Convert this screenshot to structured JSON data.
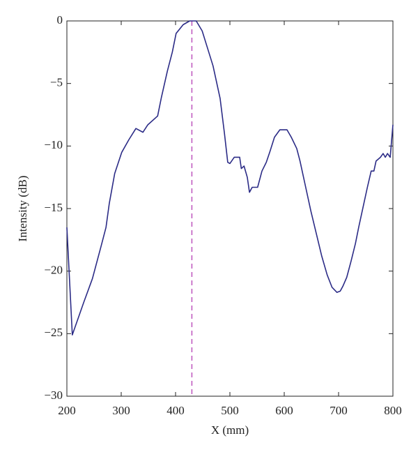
{
  "chart_data": {
    "type": "line",
    "xlabel": "X (mm)",
    "ylabel": "Intensity (dB)",
    "x": [
      200,
      210,
      231,
      247,
      263,
      272,
      278,
      288,
      301,
      314,
      327,
      340,
      349,
      367,
      374,
      385,
      394,
      401,
      414,
      426,
      438,
      449,
      459,
      469,
      482,
      490,
      496,
      500,
      508,
      518,
      521,
      526,
      532,
      536,
      541,
      551,
      559,
      567,
      574,
      582,
      592,
      605,
      613,
      623,
      629,
      638,
      649,
      659,
      669,
      679,
      688,
      697,
      703,
      708,
      715,
      723,
      731,
      737,
      745,
      753,
      760,
      765,
      769,
      777,
      782,
      786,
      790,
      795,
      800
    ],
    "series": [
      {
        "name": "Intensity",
        "color": "#2b2b86",
        "values": [
          -16.5,
          -25.1,
          -22.5,
          -20.6,
          -18,
          -16.5,
          -14.6,
          -12.2,
          -10.5,
          -9.5,
          -8.6,
          -8.9,
          -8.3,
          -7.6,
          -6.1,
          -4,
          -2.5,
          -1,
          -0.3,
          0,
          0,
          -0.8,
          -2.2,
          -3.6,
          -6.2,
          -9,
          -11.3,
          -11.4,
          -10.9,
          -10.9,
          -11.8,
          -11.6,
          -12.5,
          -13.7,
          -13.3,
          -13.3,
          -12,
          -11.3,
          -10.4,
          -9.3,
          -8.7,
          -8.7,
          -9.3,
          -10.2,
          -11.2,
          -13,
          -15.2,
          -17,
          -18.8,
          -20.3,
          -21.3,
          -21.7,
          -21.6,
          -21.2,
          -20.5,
          -19.2,
          -17.8,
          -16.5,
          -14.9,
          -13.3,
          -12,
          -12,
          -11.2,
          -10.9,
          -10.6,
          -10.9,
          -10.6,
          -10.9,
          -8.3
        ]
      }
    ],
    "vline": 430,
    "vline_color": "#c05cc0",
    "xlim": [
      200,
      800
    ],
    "xticks": [
      200,
      300,
      400,
      500,
      600,
      700,
      800
    ],
    "ylim": [
      -30,
      0
    ],
    "yticks": [
      {
        "value": -30,
        "label": "−30"
      },
      {
        "value": -25,
        "label": "−25"
      },
      {
        "value": -20,
        "label": "−20"
      },
      {
        "value": -15,
        "label": "−15"
      },
      {
        "value": -10,
        "label": "−10"
      },
      {
        "value": -5,
        "label": "−5"
      },
      0
    ]
  }
}
